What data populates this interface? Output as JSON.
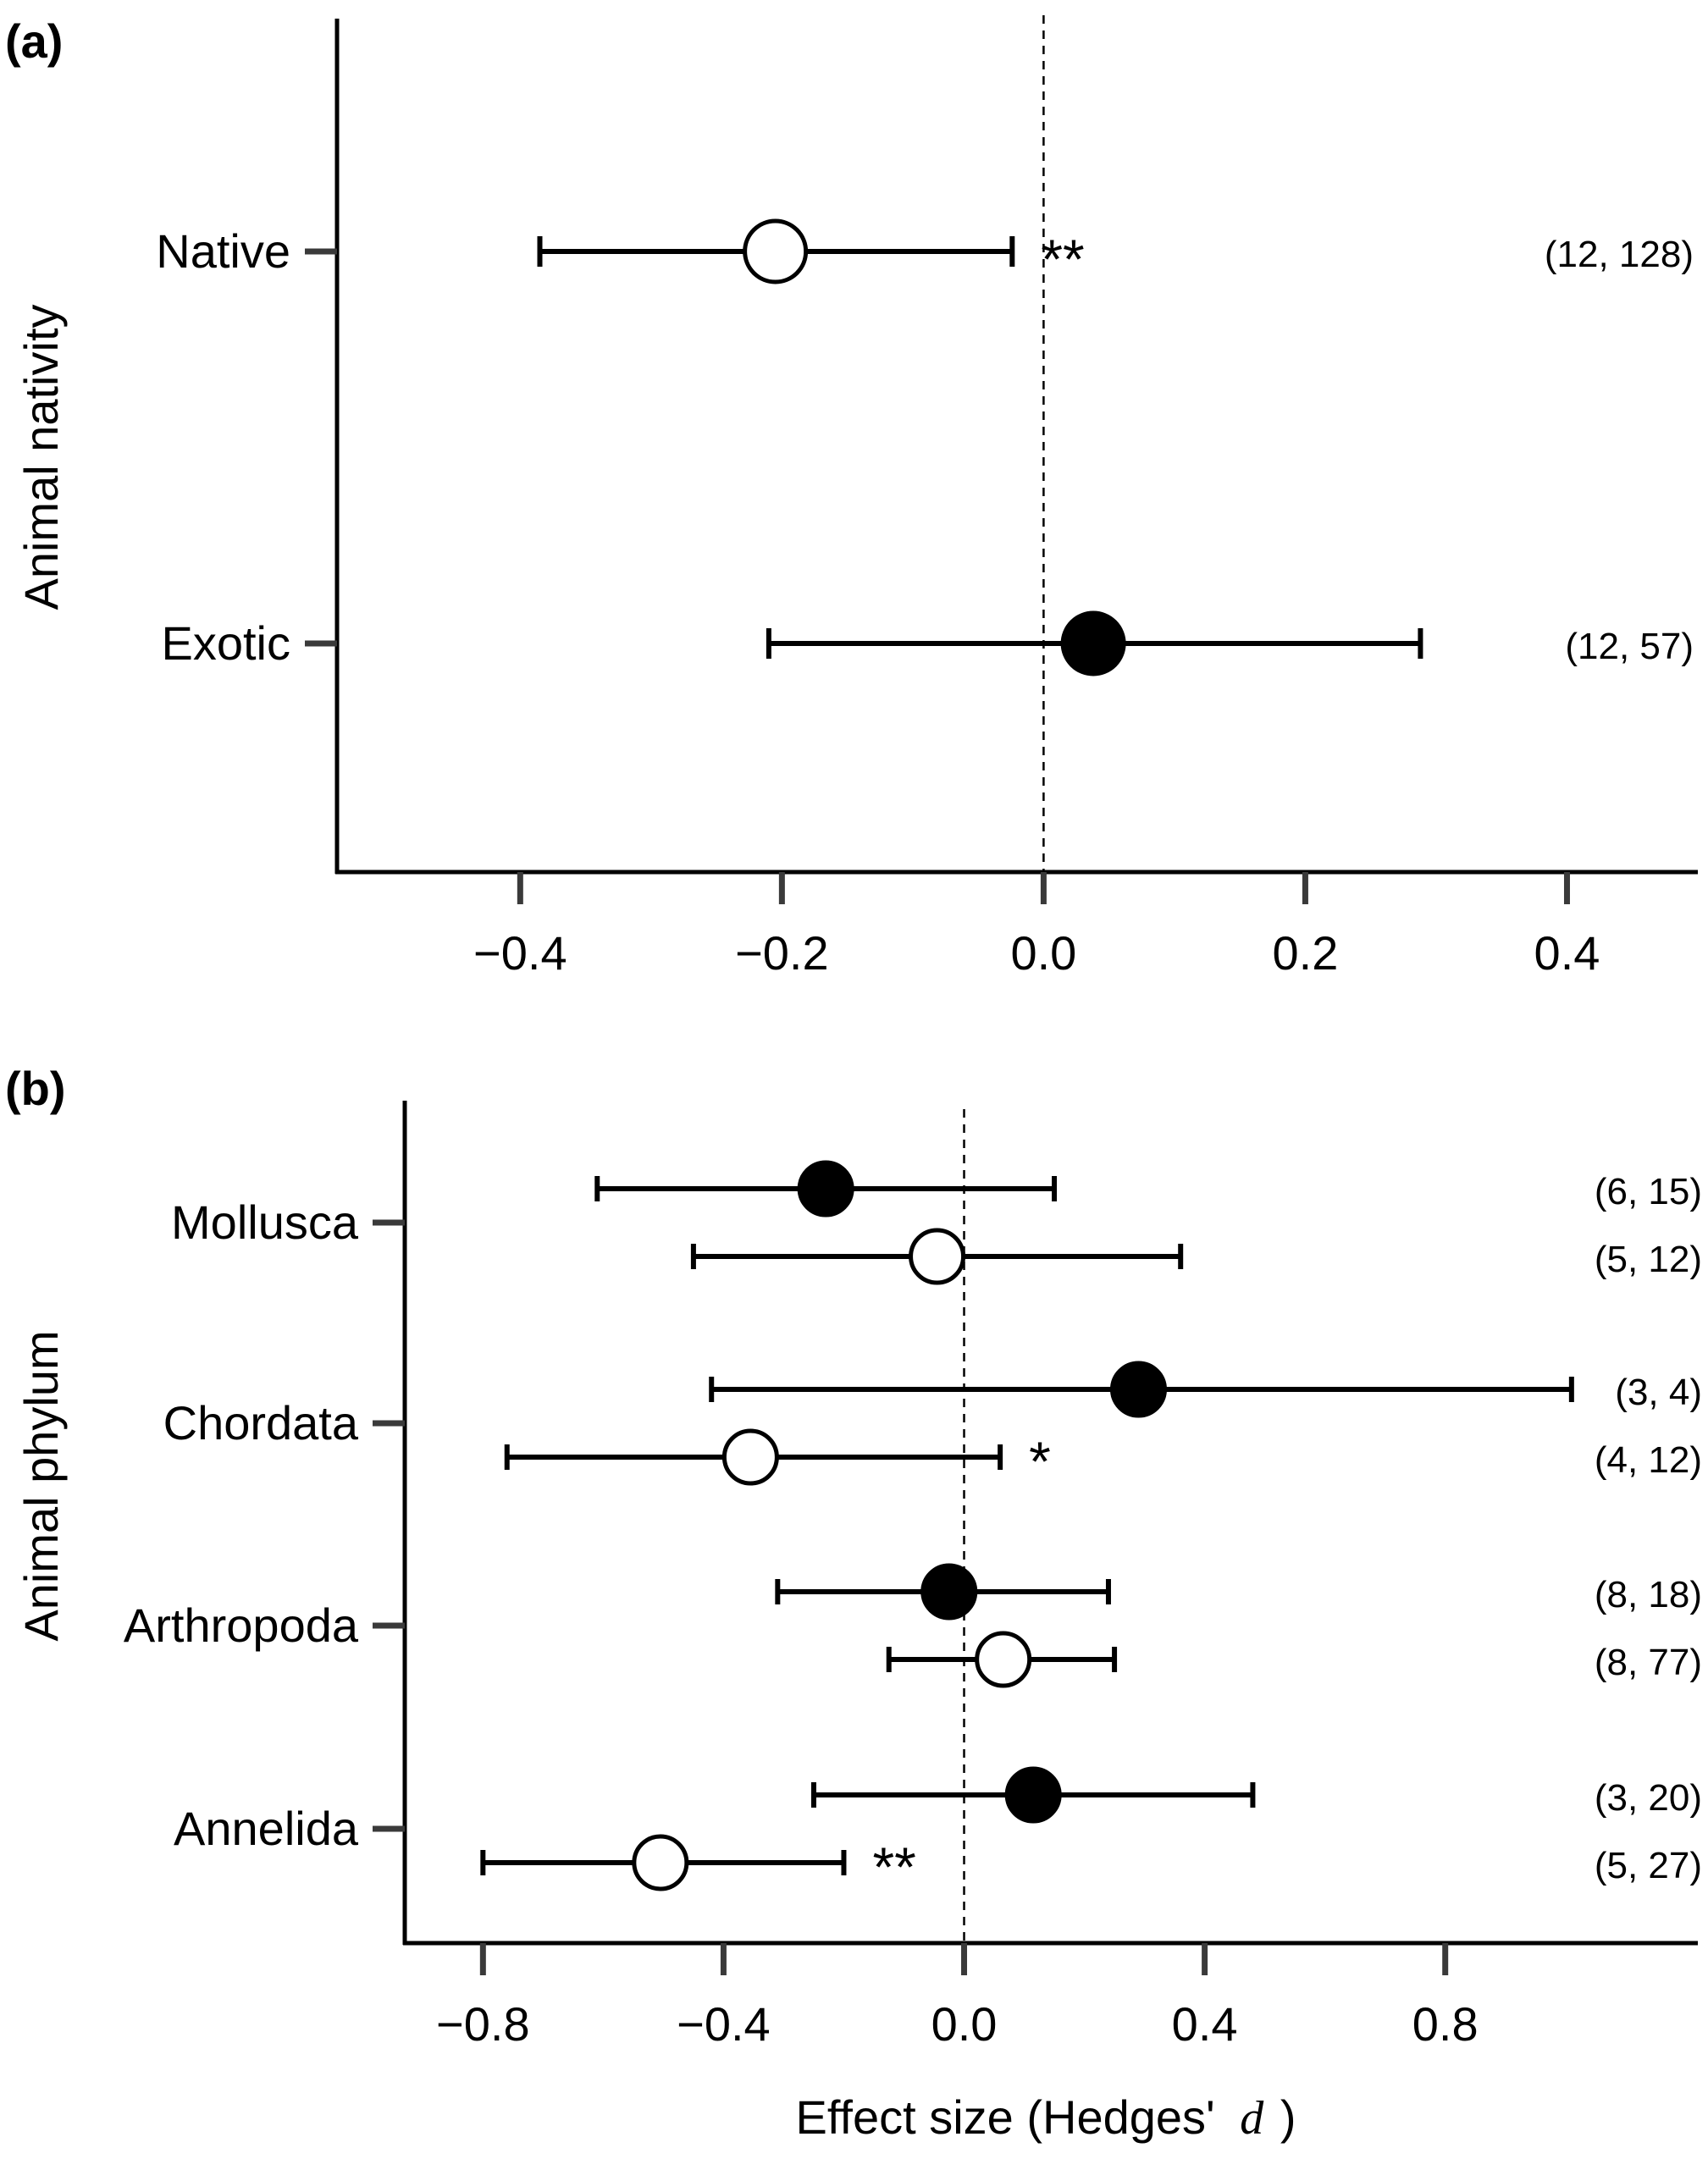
{
  "xlabel_prefix": "Effect size (Hedges'",
  "xlabel_var": "d",
  "xlabel_suffix": ")",
  "chart_data": [
    {
      "type": "scatter",
      "panel": "(a)",
      "ylabel": "Animal nativity",
      "xlim": [
        -0.54,
        0.5
      ],
      "xticks": [
        -0.4,
        -0.2,
        0.0,
        0.2,
        0.4
      ],
      "xtick_labels": [
        "−0.4",
        "−0.2",
        "0.0",
        "0.2",
        "0.4"
      ],
      "reference_line_x": 0.0,
      "categories": [
        "Native",
        "Exotic"
      ],
      "points": [
        {
          "category": "Native",
          "estimate": -0.205,
          "ci_low": -0.385,
          "ci_high": -0.024,
          "marker": "open",
          "significance": "**",
          "n_label": "(12, 128)"
        },
        {
          "category": "Exotic",
          "estimate": 0.038,
          "ci_low": -0.21,
          "ci_high": 0.288,
          "marker": "filled",
          "significance": "",
          "n_label": "(12, 57)"
        }
      ],
      "grid": false
    },
    {
      "type": "scatter",
      "panel": "(b)",
      "ylabel": "Animal phylum",
      "xlim": [
        -0.93,
        1.22
      ],
      "xticks": [
        -0.8,
        -0.4,
        0.0,
        0.4,
        0.8
      ],
      "xtick_labels": [
        "−0.8",
        "−0.4",
        "0.0",
        "0.4",
        "0.8"
      ],
      "reference_line_x": 0.0,
      "categories": [
        "Mollusca",
        "Chordata",
        "Arthropoda",
        "Annelida"
      ],
      "points": [
        {
          "category": "Mollusca",
          "estimate": -0.23,
          "ci_low": -0.61,
          "ci_high": 0.15,
          "marker": "filled",
          "significance": "",
          "n_label": "(6, 15)"
        },
        {
          "category": "Mollusca",
          "estimate": -0.045,
          "ci_low": -0.45,
          "ci_high": 0.36,
          "marker": "open",
          "significance": "",
          "n_label": "(5, 12)"
        },
        {
          "category": "Chordata",
          "estimate": 0.29,
          "ci_low": -0.42,
          "ci_high": 1.01,
          "marker": "filled",
          "significance": "",
          "n_label": "(3, 4)"
        },
        {
          "category": "Chordata",
          "estimate": -0.355,
          "ci_low": -0.76,
          "ci_high": 0.06,
          "marker": "open",
          "significance": "*",
          "n_label": "(4, 12)"
        },
        {
          "category": "Arthropoda",
          "estimate": -0.025,
          "ci_low": -0.31,
          "ci_high": 0.24,
          "marker": "filled",
          "significance": "",
          "n_label": "(8, 18)"
        },
        {
          "category": "Arthropoda",
          "estimate": 0.065,
          "ci_low": -0.125,
          "ci_high": 0.25,
          "marker": "open",
          "significance": "",
          "n_label": "(8, 77)"
        },
        {
          "category": "Annelida",
          "estimate": 0.115,
          "ci_low": -0.25,
          "ci_high": 0.48,
          "marker": "filled",
          "significance": "",
          "n_label": "(3, 20)"
        },
        {
          "category": "Annelida",
          "estimate": -0.505,
          "ci_low": -0.8,
          "ci_high": -0.2,
          "marker": "open",
          "significance": "**",
          "n_label": "(5, 27)"
        }
      ],
      "grid": false
    }
  ]
}
